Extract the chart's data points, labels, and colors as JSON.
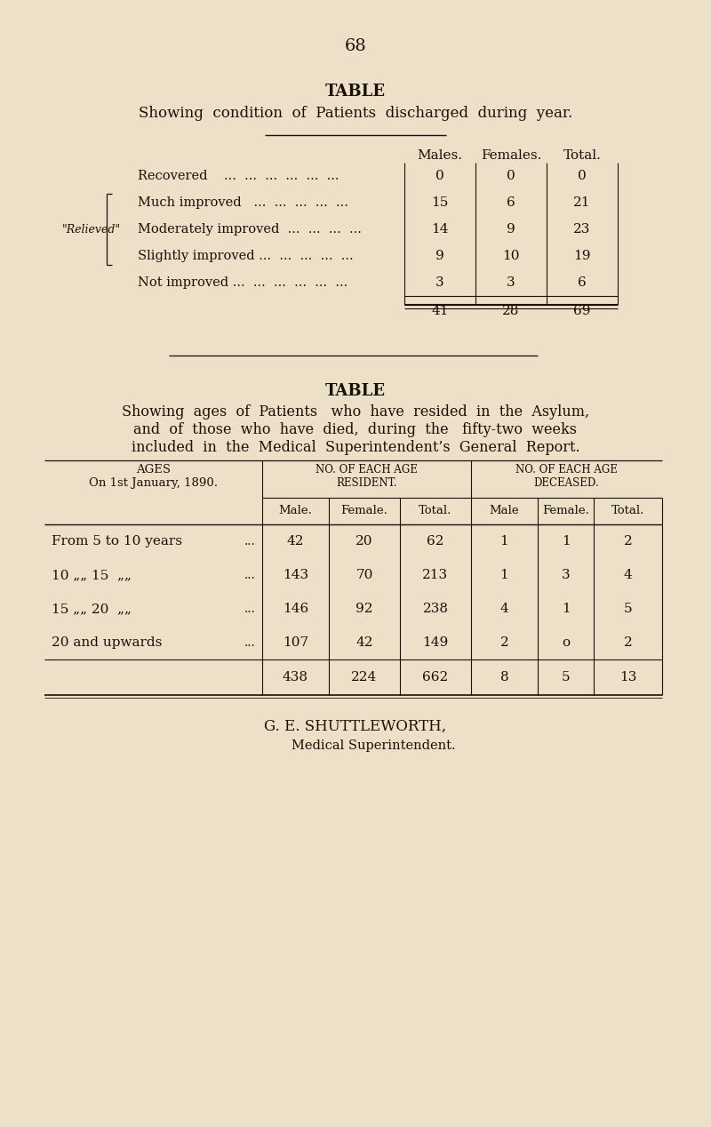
{
  "bg_color": "#ede0c8",
  "text_color": "#1a1008",
  "page_number": "68",
  "table1_title": "TABLE",
  "table1_subtitle": "Showing  condition  of  Patients  discharged  during  year.",
  "table1_col_headers": [
    "Males.",
    "Females.",
    "Total."
  ],
  "table1_rows": [
    {
      "label": "Recovered    ...  ...  ...  ...  ...  ...",
      "males": "0",
      "females": "0",
      "total": "0"
    },
    {
      "label": "Much improved   ...  ...  ...  ...  ...",
      "males": "15",
      "females": "6",
      "total": "21"
    },
    {
      "label": "Moderately improved  ...  ...  ...  ...",
      "males": "14",
      "females": "9",
      "total": "23"
    },
    {
      "label": "Slightly improved ...  ...  ...  ...  ...",
      "males": "9",
      "females": "10",
      "total": "19"
    },
    {
      "label": "Not improved ...  ...  ...  ...  ...  ...",
      "males": "3",
      "females": "3",
      "total": "6"
    }
  ],
  "table1_totals": [
    "41",
    "28",
    "69"
  ],
  "relieved_label": "\"Relieved\"",
  "table2_title": "TABLE",
  "table2_subtitle_line1": "Showing  ages  of  Patients   who  have  resided  in  the  Asylum,",
  "table2_subtitle_line2": "and  of  those  who  have  died,  during  the   fifty-two  weeks",
  "table2_subtitle_line3": "included  in  the  Medical  Superintendent’s  General  Report.",
  "table2_rows": [
    {
      "age": "From 5 to 10 years",
      "r_male": "42",
      "r_female": "20",
      "r_total": "62",
      "d_male": "1",
      "d_female": "1",
      "d_total": "2"
    },
    {
      "age": "10 „„ 15  „„",
      "r_male": "143",
      "r_female": "70",
      "r_total": "213",
      "d_male": "1",
      "d_female": "3",
      "d_total": "4"
    },
    {
      "age": "15 „„ 20  „„",
      "r_male": "146",
      "r_female": "92",
      "r_total": "238",
      "d_male": "4",
      "d_female": "1",
      "d_total": "5"
    },
    {
      "age": "20 and upwards",
      "r_male": "107",
      "r_female": "42",
      "r_total": "149",
      "d_male": "2",
      "d_female": "o",
      "d_total": "2"
    }
  ],
  "table2_totals": [
    "438",
    "224",
    "662",
    "8",
    "5",
    "13"
  ],
  "footer_line1": "G. E. SHUTTLEWORTH,",
  "footer_line2": "Medical Superintendent."
}
